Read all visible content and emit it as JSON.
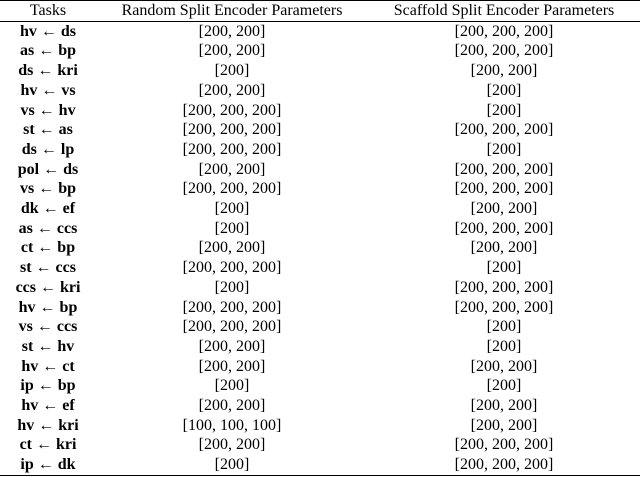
{
  "table": {
    "header": [
      "Tasks",
      "Random Split Encoder Parameters",
      "Scaffold Split Encoder Parameters"
    ],
    "rows": [
      [
        "hv ← ds",
        "[200, 200]",
        "[200, 200, 200]"
      ],
      [
        "as ← bp",
        "[200, 200]",
        "[200, 200, 200]"
      ],
      [
        "ds ← kri",
        "[200]",
        "[200, 200]"
      ],
      [
        "hv ← vs",
        "[200, 200]",
        "[200]"
      ],
      [
        "vs ← hv",
        "[200, 200, 200]",
        "[200]"
      ],
      [
        "st ← as",
        "[200, 200, 200]",
        "[200, 200, 200]"
      ],
      [
        "ds ← lp",
        "[200, 200, 200]",
        "[200]"
      ],
      [
        "pol ← ds",
        "[200, 200]",
        "[200, 200, 200]"
      ],
      [
        "vs ← bp",
        "[200, 200, 200]",
        "[200, 200, 200]"
      ],
      [
        "dk ← ef",
        "[200]",
        "[200, 200]"
      ],
      [
        "as ← ccs",
        "[200]",
        "[200, 200, 200]"
      ],
      [
        "ct ← bp",
        "[200, 200]",
        "[200, 200]"
      ],
      [
        "st ← ccs",
        "[200, 200, 200]",
        "[200]"
      ],
      [
        "ccs ← kri",
        "[200]",
        "[200, 200, 200]"
      ],
      [
        "hv ← bp",
        "[200, 200, 200]",
        "[200, 200, 200]"
      ],
      [
        "vs ← ccs",
        "[200, 200, 200]",
        "[200]"
      ],
      [
        "st ← hv",
        "[200, 200]",
        "[200]"
      ],
      [
        "hv ← ct",
        "[200, 200]",
        "[200, 200]"
      ],
      [
        "ip ← bp",
        "[200]",
        "[200]"
      ],
      [
        "hv ← ef",
        "[200, 200]",
        "[200, 200]"
      ],
      [
        "hv ← kri",
        "[100, 100, 100]",
        "[200, 200]"
      ],
      [
        "ct ← kri",
        "[200, 200]",
        "[200, 200, 200]"
      ],
      [
        "ip ← dk",
        "[200]",
        "[200, 200, 200]"
      ]
    ]
  }
}
